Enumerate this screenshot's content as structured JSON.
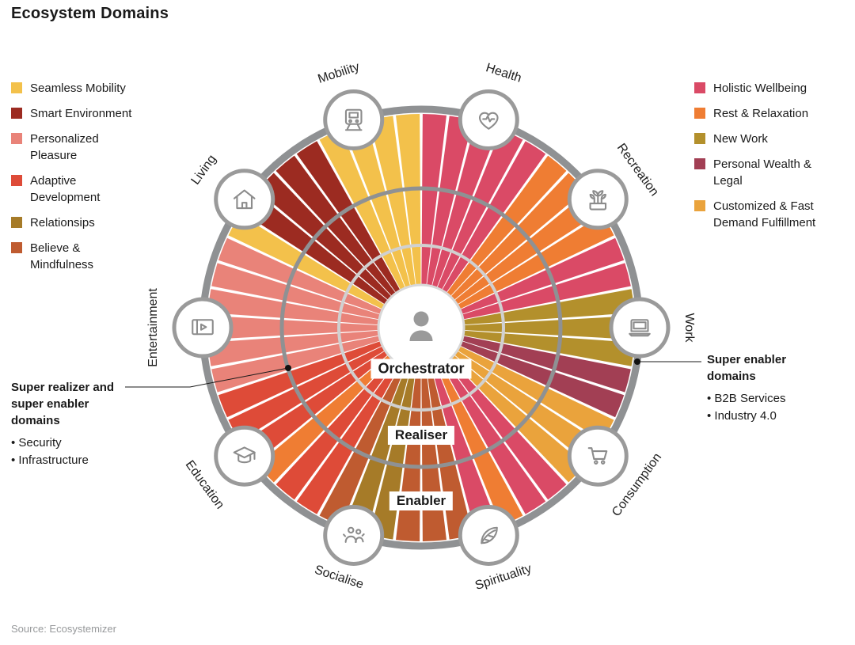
{
  "title": "Ecosystem Domains",
  "source": "Source: Ecosystemizer",
  "legend_left": [
    {
      "label": "Seamless Mobility",
      "color": "#F3C14B"
    },
    {
      "label": "Smart Environment",
      "color": "#9C2B21"
    },
    {
      "label": "Personalized Pleasure",
      "color": "#E98379"
    },
    {
      "label": "Adaptive Development",
      "color": "#DE4B38"
    },
    {
      "label": "Relationsips",
      "color": "#A67B28"
    },
    {
      "label": "Believe & Mindfulness",
      "color": "#BF5B30"
    }
  ],
  "legend_right": [
    {
      "label": "Holistic Wellbeing",
      "color": "#DA4A66"
    },
    {
      "label": "Rest & Relaxation",
      "color": "#EF7D33"
    },
    {
      "label": "New Work",
      "color": "#B3902C"
    },
    {
      "label": "Personal Wealth & Legal",
      "color": "#A23F54"
    },
    {
      "label": "Customized & Fast Demand Fulfillment",
      "color": "#EAA33C"
    }
  ],
  "annotations": {
    "left": {
      "title": "Super realizer and super enabler domains",
      "items": [
        "Security",
        "Infrastructure"
      ]
    },
    "right": {
      "title": "Super enabler domains",
      "items": [
        "B2B Services",
        "Industry 4.0"
      ]
    }
  },
  "diagram": {
    "rings": [
      {
        "label": "Orchestrator"
      },
      {
        "label": "Realiser"
      },
      {
        "label": "Enabler"
      }
    ],
    "center_icon": "person-icon",
    "ring_gray": "#8F9193",
    "light_gray": "#D0D0D0",
    "icon_gray": "#8C8C8C",
    "domains": [
      {
        "label": "Health",
        "icon": "heart-icon",
        "angle": 18,
        "wedges": [
          "#DA4A66",
          "#DA4A66",
          "#DA4A66",
          "#DA4A66",
          "#DA4A66"
        ]
      },
      {
        "label": "Recreation",
        "icon": "plant-icon",
        "angle": 54,
        "wedges": [
          "#EF7D33",
          "#EF7D33",
          "#EF7D33",
          "#EF7D33",
          "#DA4A66"
        ]
      },
      {
        "label": "Work",
        "icon": "laptop-icon",
        "angle": 90,
        "wedges": [
          "#DA4A66",
          "#B3902C",
          "#B3902C",
          "#B3902C",
          "#A23F54"
        ]
      },
      {
        "label": "Consumption",
        "icon": "cart-icon",
        "angle": 126,
        "wedges": [
          "#A23F54",
          "#EAA33C",
          "#EAA33C",
          "#EAA33C",
          "#DA4A66"
        ]
      },
      {
        "label": "Spirituality",
        "icon": "leaf-icon",
        "angle": 162,
        "wedges": [
          "#DA4A66",
          "#EF7D33",
          "#DA4A66",
          "#BF5B30",
          "#BF5B30"
        ]
      },
      {
        "label": "Socialise",
        "icon": "people-icon",
        "angle": 198,
        "wedges": [
          "#BF5B30",
          "#A67B28",
          "#A67B28",
          "#BF5B30",
          "#DE4B38"
        ]
      },
      {
        "label": "Education",
        "icon": "cap-icon",
        "angle": 234,
        "wedges": [
          "#DE4B38",
          "#EF7D33",
          "#DE4B38",
          "#DE4B38",
          "#DE4B38"
        ]
      },
      {
        "label": "Entertainment",
        "icon": "video-icon",
        "angle": 270,
        "wedges": [
          "#E98379",
          "#E98379",
          "#E98379",
          "#E98379",
          "#E98379"
        ]
      },
      {
        "label": "Living",
        "icon": "house-icon",
        "angle": 306,
        "wedges": [
          "#E98379",
          "#F3C14B",
          "#9C2B21",
          "#9C2B21",
          "#9C2B21"
        ]
      },
      {
        "label": "Mobility",
        "icon": "train-icon",
        "angle": 342,
        "wedges": [
          "#9C2B21",
          "#F3C14B",
          "#F3C14B",
          "#F3C14B",
          "#F3C14B"
        ]
      }
    ]
  }
}
